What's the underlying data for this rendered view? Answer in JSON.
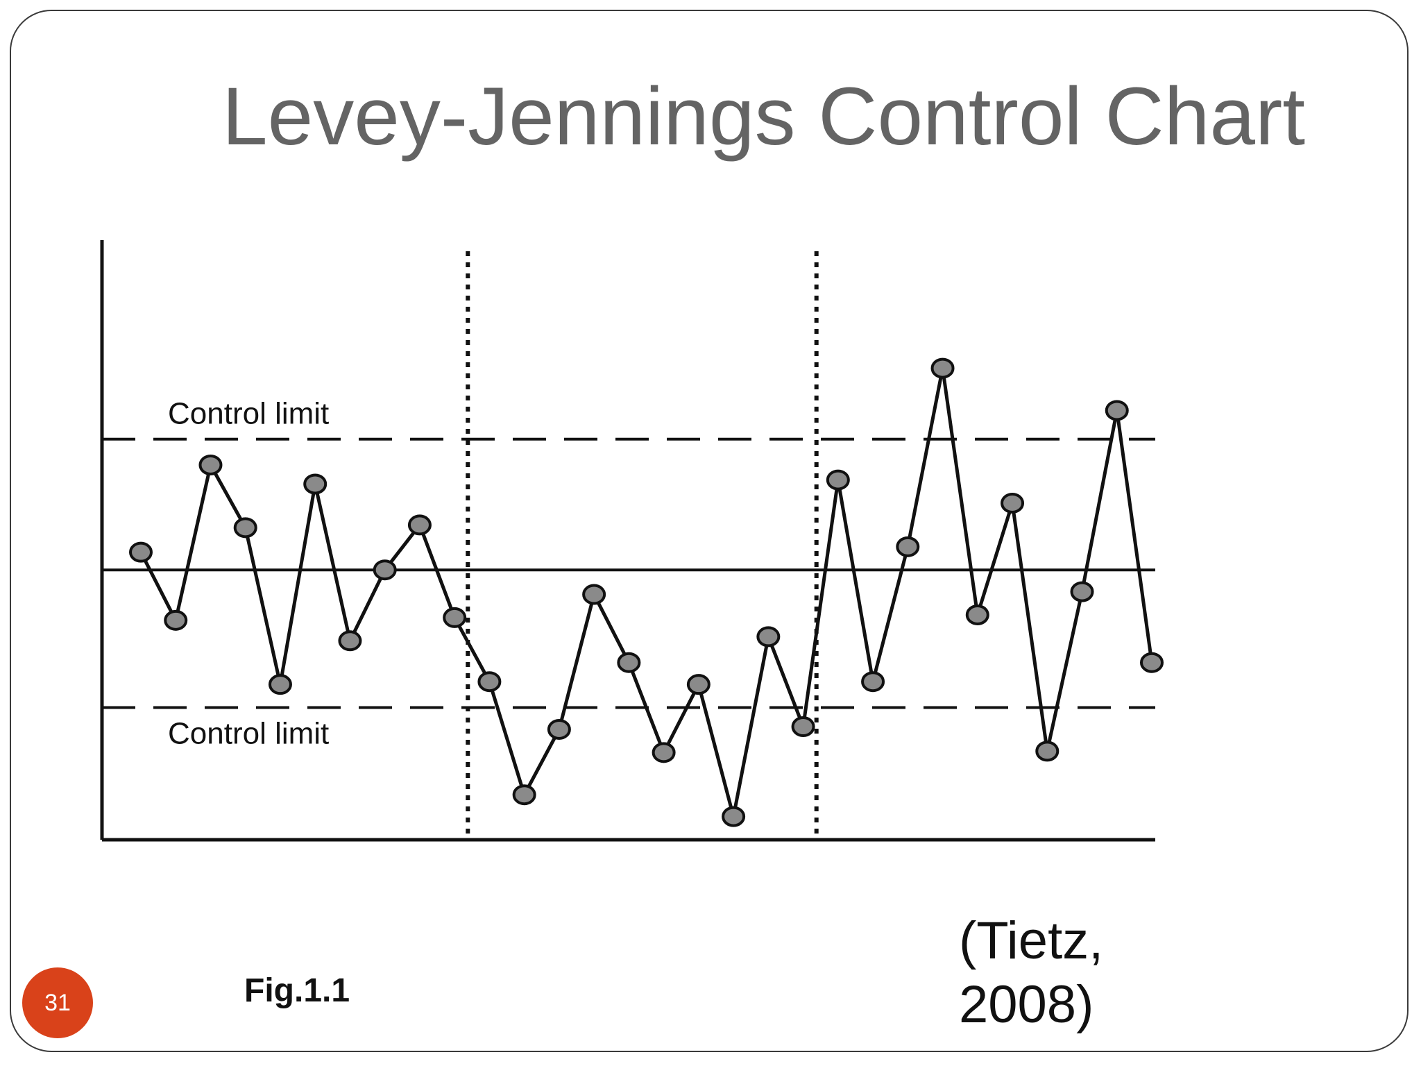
{
  "slide": {
    "title": "Levey-Jennings Control Chart",
    "number": "31",
    "figure_label": "Fig.1.1",
    "citation": "(Tietz, 2008)",
    "accent_color": "#d9421a"
  },
  "chart_data": {
    "type": "line",
    "title": "",
    "xlabel": "",
    "ylabel": "",
    "values": [
      0.13,
      -0.37,
      0.77,
      0.31,
      -0.84,
      0.63,
      -0.52,
      0.0,
      0.33,
      -0.35,
      -0.82,
      -1.65,
      -1.17,
      -0.18,
      -0.68,
      -1.34,
      -0.84,
      -1.81,
      -0.49,
      -1.15,
      0.66,
      -0.82,
      0.17,
      1.48,
      -0.33,
      0.49,
      -1.33,
      -0.16,
      1.17,
      -0.68
    ],
    "center_line": 0,
    "upper_control_limit": 0.96,
    "lower_control_limit": -1.01,
    "upper_limit_label": "Control limit",
    "lower_limit_label": "Control limit",
    "section_dividers_after_point": [
      10,
      20
    ],
    "ylim": [
      -1.98,
      2.42
    ],
    "grid": false,
    "legend": "none"
  }
}
